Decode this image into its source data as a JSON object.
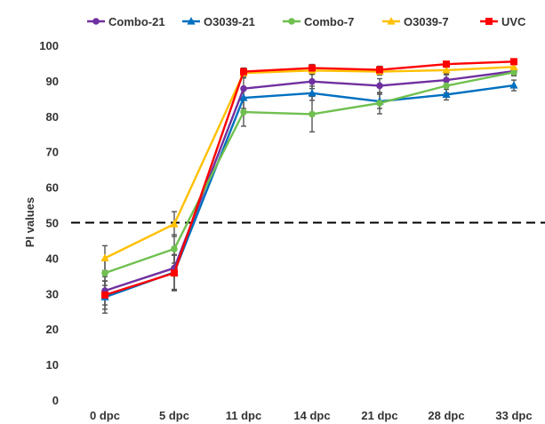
{
  "chart_data": {
    "type": "line",
    "categories": [
      "0 dpc",
      "5 dpc",
      "11 dpc",
      "14 dpc",
      "21 dpc",
      "28 dpc",
      "33 dpc"
    ],
    "ylabel": "PI values",
    "xlabel": "",
    "ylim": [
      0,
      100
    ],
    "yticks": [
      0,
      10,
      20,
      30,
      40,
      50,
      60,
      70,
      80,
      90,
      100
    ],
    "reference_line": {
      "value": 50,
      "style": "dashed",
      "color": "#000000"
    },
    "legend_position": "top",
    "grid": false,
    "series": [
      {
        "name": "Combo-21",
        "color": "#7030A0",
        "marker": "circle",
        "values": [
          30.8,
          37.2,
          87.8,
          89.8,
          88.6,
          90.2,
          92.7
        ],
        "errors": [
          4.0,
          6.0,
          3.0,
          2.0,
          2.0,
          1.5,
          1.0
        ]
      },
      {
        "name": "O3039-21",
        "color": "#0070C0",
        "marker": "triangle",
        "values": [
          29.0,
          36.0,
          85.2,
          86.5,
          84.2,
          86.1,
          88.7
        ],
        "errors": [
          4.5,
          5.0,
          3.0,
          2.0,
          2.0,
          1.5,
          1.5
        ]
      },
      {
        "name": "Combo-7",
        "color": "#70C050",
        "marker": "circle",
        "values": [
          35.8,
          42.6,
          81.2,
          80.6,
          83.7,
          88.6,
          92.4
        ],
        "errors": [
          3.5,
          4.0,
          4.0,
          5.0,
          3.0,
          2.0,
          1.0
        ]
      },
      {
        "name": "O3039-7",
        "color": "#FFC000",
        "marker": "triangle",
        "values": [
          40.0,
          49.6,
          92.2,
          92.9,
          92.6,
          93.0,
          93.9
        ],
        "errors": [
          3.5,
          3.5,
          1.0,
          1.0,
          1.0,
          1.0,
          1.0
        ]
      },
      {
        "name": "UVC",
        "color": "#FF0000",
        "marker": "square",
        "values": [
          29.6,
          35.8,
          92.6,
          93.6,
          93.1,
          94.7,
          95.4
        ],
        "errors": [
          4.0,
          5.0,
          1.0,
          1.0,
          1.0,
          0.5,
          0.5
        ]
      }
    ]
  }
}
